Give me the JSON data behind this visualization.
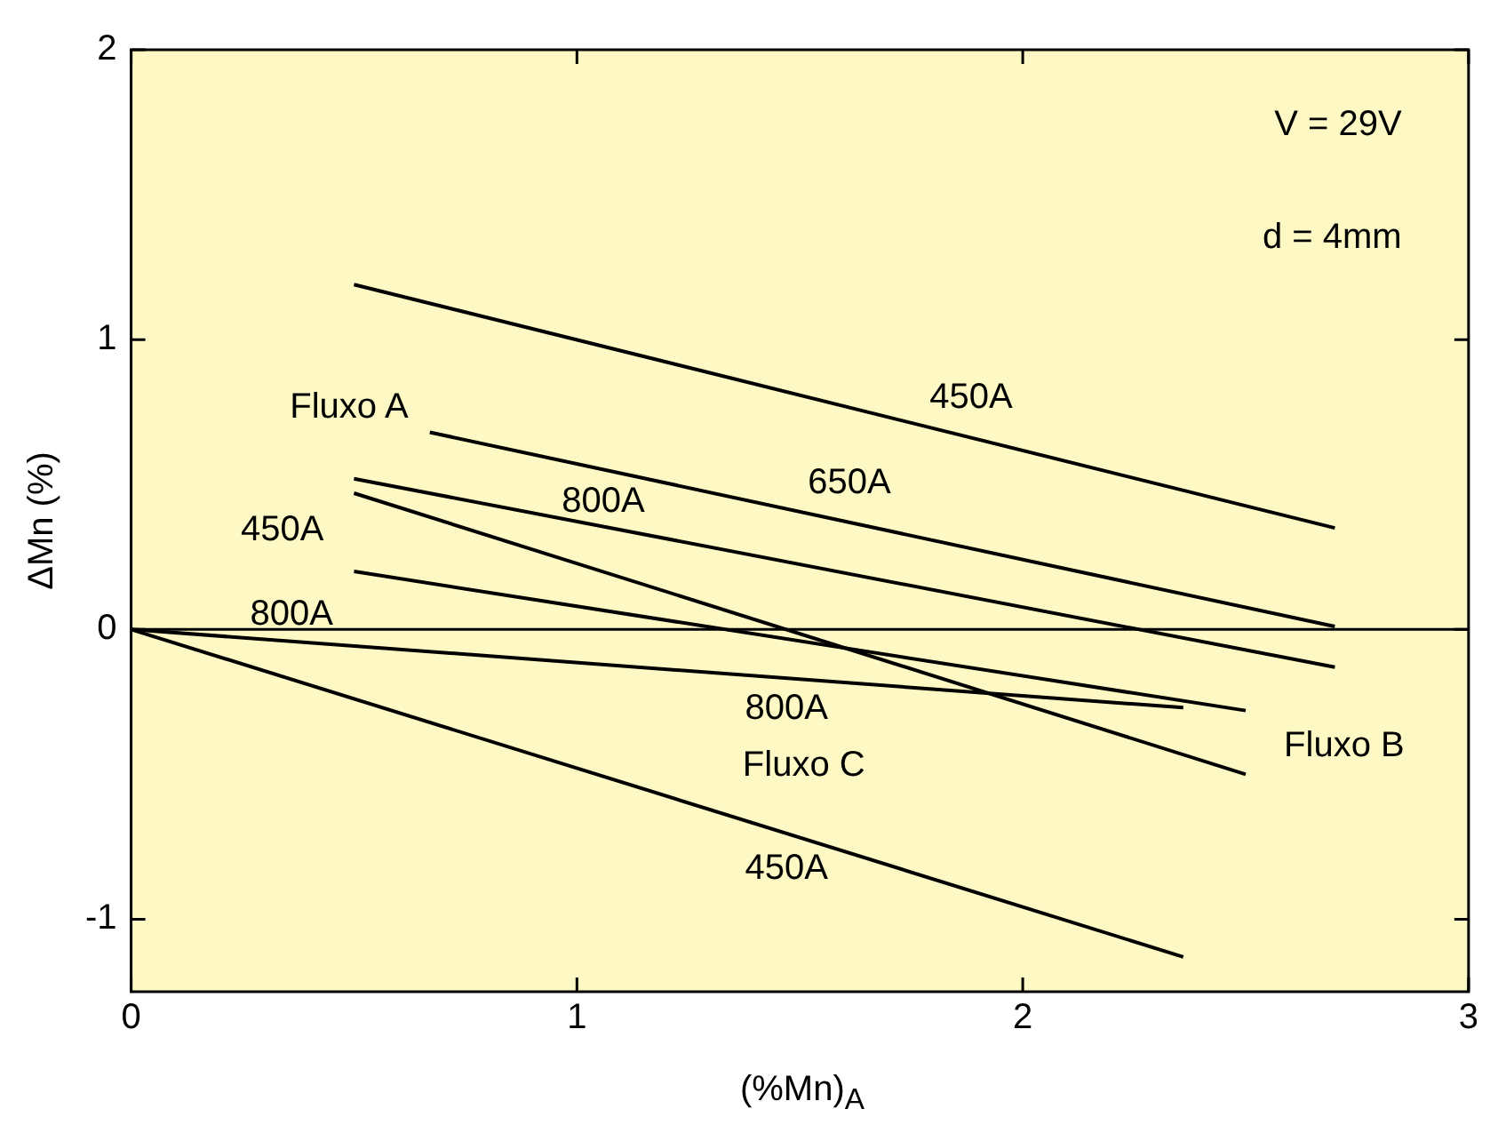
{
  "chart_data": {
    "type": "line",
    "ylabel": "ΔMn (%)",
    "xlabel": "(%Mn)$_{A}$",
    "series": [
      {
        "color": "#000000",
        "x": [
          0.5,
          2.7
        ],
        "values": [
          1.19,
          0.35
        ]
      },
      {
        "color": "#000000",
        "x": [
          0.67,
          2.7
        ],
        "values": [
          0.68,
          0.01
        ]
      },
      {
        "color": "#000000",
        "x": [
          0.5,
          2.7
        ],
        "values": [
          0.52,
          -0.13
        ]
      },
      {
        "color": "#000000",
        "x": [
          0.5,
          2.5
        ],
        "values": [
          0.47,
          -0.5
        ]
      },
      {
        "color": "#000000",
        "x": [
          0.5,
          2.5
        ],
        "values": [
          0.2,
          -0.28
        ]
      },
      {
        "color": "#000000",
        "x": [
          0,
          2.36
        ],
        "values": [
          0,
          -0.27
        ]
      },
      {
        "color": "#000000",
        "x": [
          0,
          2.36
        ],
        "values": [
          0,
          -1.13
        ]
      }
    ],
    "xlim": [
      0,
      3
    ],
    "xticks": [
      0,
      1,
      2,
      3
    ],
    "ylim": [
      -1.25,
      2
    ],
    "yticks": [
      -1,
      0,
      1,
      2
    ],
    "grid": false,
    "legend": false,
    "marker": "none",
    "line_style": "solid",
    "ref_lines": [
      {
        "axis": "y",
        "value": 0,
        "color": "#000000"
      }
    ],
    "annotations": [
      "V = 29V",
      "d = 4mm",
      "450A",
      "650A",
      "800A",
      "Fluxo A",
      "450A",
      "800A",
      "Fluxo B",
      "800A",
      "Fluxo C",
      "450A"
    ]
  }
}
